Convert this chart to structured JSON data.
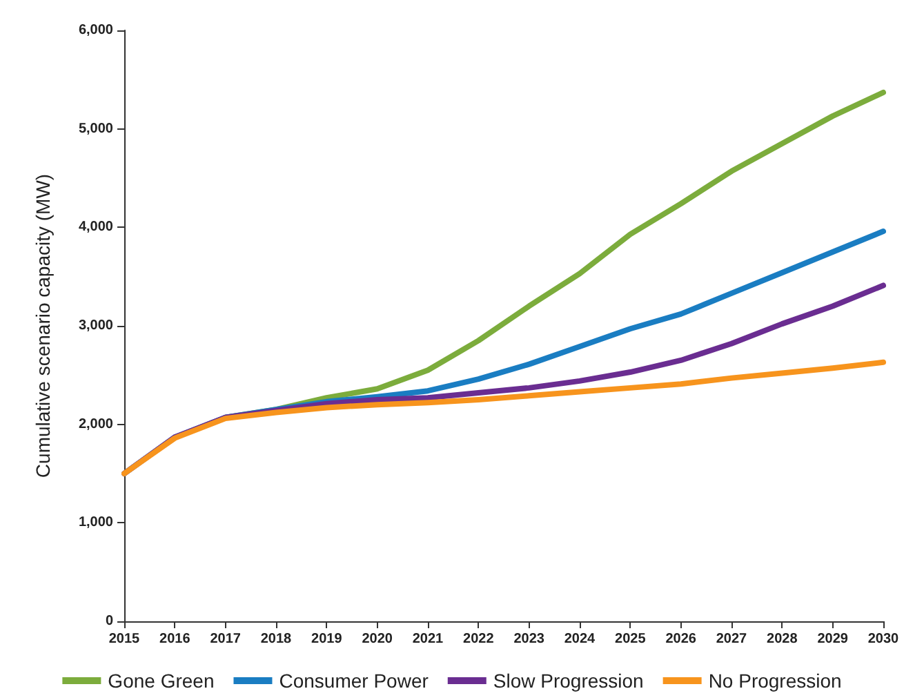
{
  "chart_data": {
    "type": "line",
    "ylabel": "Cumulative scenario capacity (MW)",
    "x": [
      2015,
      2016,
      2017,
      2018,
      2019,
      2020,
      2021,
      2022,
      2023,
      2024,
      2025,
      2026,
      2027,
      2028,
      2029,
      2030
    ],
    "series": [
      {
        "name": "Gone Green",
        "color": "#7cac3c",
        "values": [
          null,
          null,
          2070,
          2150,
          2270,
          2360,
          2550,
          2850,
          3200,
          3530,
          3930,
          4240,
          4570,
          4850,
          5130,
          5370
        ]
      },
      {
        "name": "Consumer Power",
        "color": "#1a7dc2",
        "values": [
          1500,
          1870,
          2070,
          2150,
          2230,
          2280,
          2340,
          2460,
          2610,
          2790,
          2970,
          3120,
          3330,
          3540,
          3750,
          3960
        ]
      },
      {
        "name": "Slow Progression",
        "color": "#6a2d91",
        "values": [
          1500,
          1870,
          2070,
          2140,
          2210,
          2250,
          2270,
          2320,
          2370,
          2440,
          2530,
          2650,
          2820,
          3020,
          3200,
          3410
        ]
      },
      {
        "name": "No Progression",
        "color": "#f7941d",
        "values": [
          1500,
          1860,
          2060,
          2120,
          2170,
          2200,
          2220,
          2250,
          2290,
          2330,
          2370,
          2410,
          2470,
          2520,
          2570,
          2630
        ]
      }
    ],
    "xlim": [
      2015,
      2030
    ],
    "xticks": [
      2015,
      2016,
      2017,
      2018,
      2019,
      2020,
      2021,
      2022,
      2023,
      2024,
      2025,
      2026,
      2027,
      2028,
      2029,
      2030
    ],
    "ylim": [
      0,
      6000
    ],
    "yticks": [
      {
        "value": 0,
        "label": "0"
      },
      {
        "value": 1000,
        "label": "1,000"
      },
      {
        "value": 2000,
        "label": "2,000"
      },
      {
        "value": 3000,
        "label": "3,000"
      },
      {
        "value": 4000,
        "label": "4,000"
      },
      {
        "value": 5000,
        "label": "5,000"
      },
      {
        "value": 6000,
        "label": "6,000"
      }
    ],
    "grid": false,
    "legend": "bottom",
    "marker": "none",
    "line_style": "solid"
  }
}
